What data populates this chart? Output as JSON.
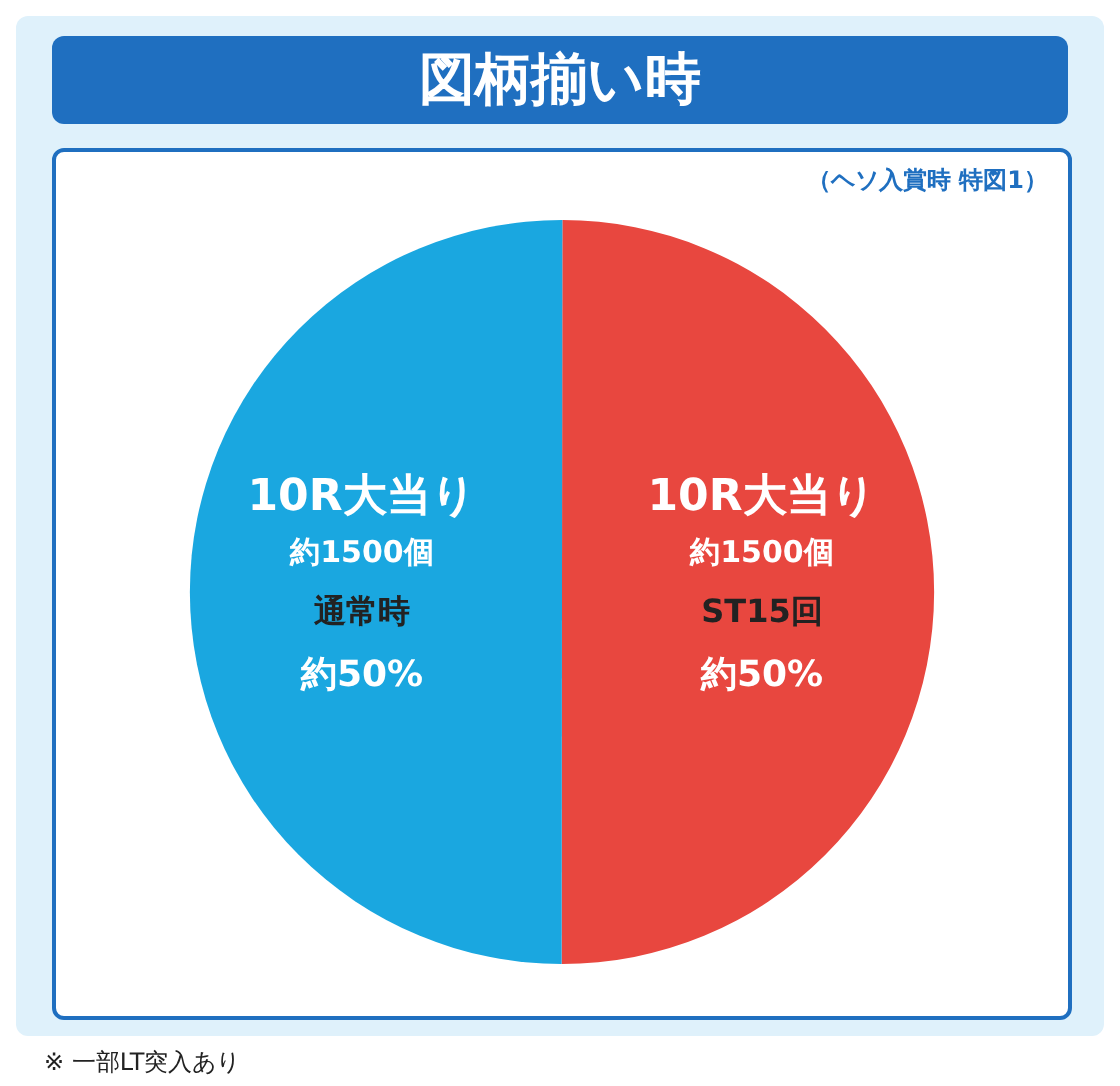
{
  "chart_data": {
    "type": "pie",
    "title": "図柄揃い時",
    "subtitle": "（ヘソ入賞時 特図1）",
    "categories": [
      "ST15回",
      "通常時"
    ],
    "values": [
      50,
      50
    ],
    "colors": [
      "#e8473f",
      "#1aa7e0"
    ],
    "value_labels": [
      "約50%",
      "約50%"
    ],
    "annotations": [
      "10R大当り",
      "約1500個",
      "10R大当り",
      "約1500個",
      "※ 一部LT突入あり"
    ]
  }
}
